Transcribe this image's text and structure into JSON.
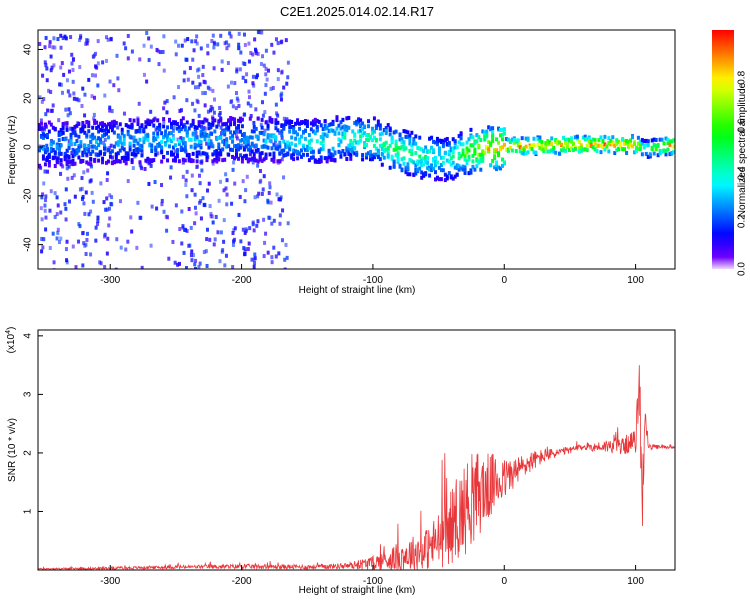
{
  "title": "C2E1.2025.014.02.14.R17",
  "chart_data": [
    {
      "type": "heatmap",
      "xlabel": "Height of straight line (km)",
      "ylabel": "Frequency (Hz)",
      "xlim": [
        -355,
        130
      ],
      "ylim": [
        -50,
        48
      ],
      "xticks": [
        -300,
        -200,
        -100,
        0,
        100
      ],
      "yticks": [
        -40,
        -20,
        0,
        20,
        40
      ],
      "colorbar": {
        "label": "Normalized spectral amplitude",
        "range": [
          0,
          1
        ],
        "ticks": [
          0.0,
          0.2,
          0.4,
          0.6,
          0.8
        ]
      },
      "ridge": {
        "x": [
          -355,
          -300,
          -250,
          -200,
          -170,
          -150,
          -120,
          -100,
          -80,
          -60,
          -45,
          -35,
          -20,
          0,
          20,
          60,
          100,
          105,
          130
        ],
        "freq": [
          1,
          2,
          3,
          3,
          3,
          2,
          4,
          3,
          -2,
          -4,
          -5,
          -3,
          -1,
          0,
          0.5,
          1,
          1,
          -1,
          1
        ],
        "amplitude": [
          0.3,
          0.3,
          0.35,
          0.3,
          0.35,
          0.4,
          0.45,
          0.5,
          0.55,
          0.5,
          0.4,
          0.55,
          0.8,
          0.95,
          0.97,
          0.97,
          0.9,
          0.5,
          0.97
        ]
      }
    },
    {
      "type": "line",
      "xlabel": "Height of straight line (km)",
      "ylabel": "SNR (10 * v/v)",
      "multiplier_label": "(x10",
      "multiplier_exp": "4",
      "multiplier_close": ")",
      "xlim": [
        -355,
        130
      ],
      "ylim": [
        0,
        4.1
      ],
      "xticks": [
        -300,
        -200,
        -100,
        0,
        100
      ],
      "yticks": [
        1,
        2,
        3,
        4
      ],
      "color": "#e8373a",
      "series": [
        {
          "x": [
            -355,
            -300,
            -250,
            -200,
            -150,
            -120,
            -100,
            -80,
            -60,
            -50,
            -40,
            -30,
            -20,
            -10,
            0,
            10,
            20,
            30,
            40,
            50,
            60,
            70,
            80,
            90,
            100,
            103,
            105,
            107,
            110,
            120,
            130
          ],
          "y": [
            0.02,
            0.03,
            0.05,
            0.06,
            0.05,
            0.07,
            0.12,
            0.22,
            0.35,
            0.5,
            0.75,
            1.05,
            1.3,
            1.45,
            1.55,
            1.7,
            1.85,
            1.95,
            2.0,
            2.05,
            2.1,
            2.1,
            2.12,
            2.12,
            2.2,
            3.2,
            1.0,
            2.6,
            2.1,
            2.1,
            2.1
          ],
          "noise": [
            0.01,
            0.02,
            0.03,
            0.04,
            0.04,
            0.05,
            0.12,
            0.25,
            0.35,
            0.5,
            0.65,
            0.8,
            0.75,
            0.55,
            0.35,
            0.25,
            0.18,
            0.12,
            0.08,
            0.06,
            0.05,
            0.08,
            0.12,
            0.15,
            0.2,
            0.6,
            0.5,
            0.4,
            0.05,
            0.03,
            0.03
          ]
        }
      ]
    }
  ]
}
